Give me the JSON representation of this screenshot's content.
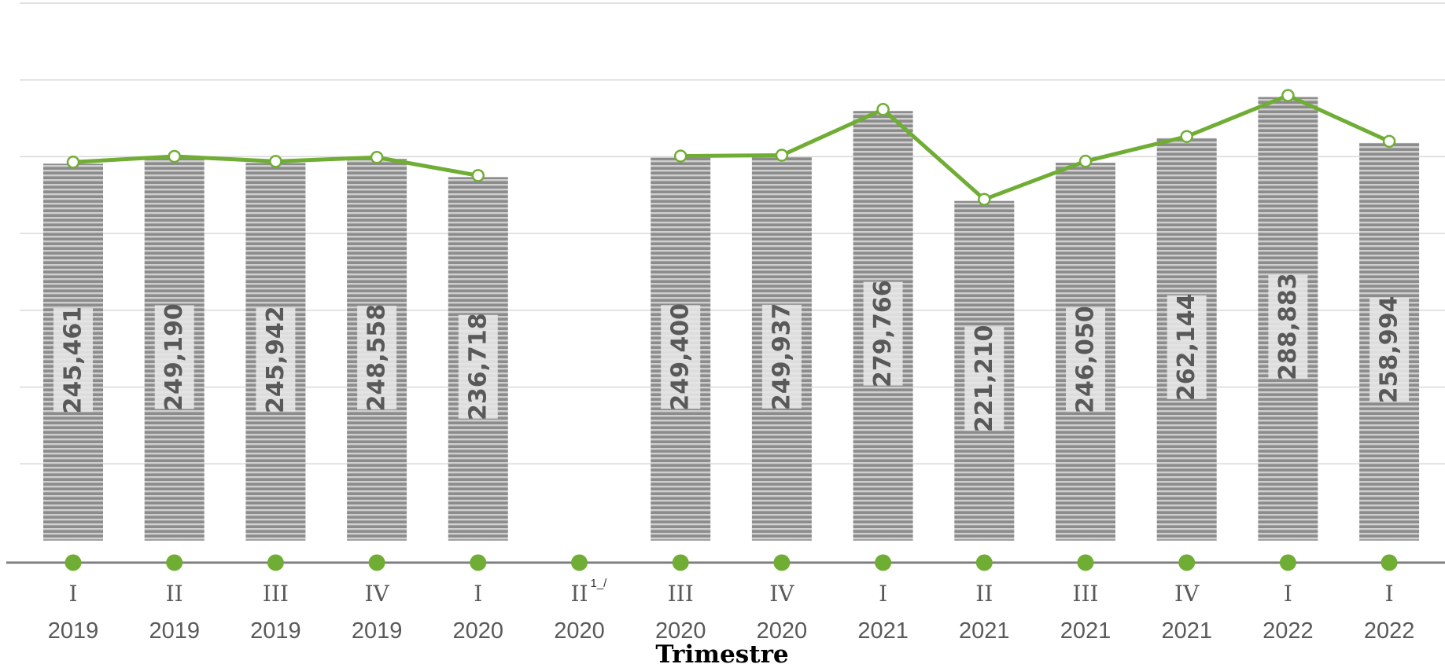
{
  "chart_data": {
    "type": "bar",
    "xlabel": "Trimestre",
    "ylabel": "",
    "ylim": [
      0,
      350000
    ],
    "grid": true,
    "categories": [
      {
        "quarter": "I",
        "year": "2019",
        "note": ""
      },
      {
        "quarter": "II",
        "year": "2019",
        "note": ""
      },
      {
        "quarter": "III",
        "year": "2019",
        "note": ""
      },
      {
        "quarter": "IV",
        "year": "2019",
        "note": ""
      },
      {
        "quarter": "I",
        "year": "2020",
        "note": ""
      },
      {
        "quarter": "II",
        "year": "2020",
        "note": "1_/"
      },
      {
        "quarter": "III",
        "year": "2020",
        "note": ""
      },
      {
        "quarter": "IV",
        "year": "2020",
        "note": ""
      },
      {
        "quarter": "I",
        "year": "2021",
        "note": ""
      },
      {
        "quarter": "II",
        "year": "2021",
        "note": ""
      },
      {
        "quarter": "III",
        "year": "2021",
        "note": ""
      },
      {
        "quarter": "IV",
        "year": "2021",
        "note": ""
      },
      {
        "quarter": "I",
        "year": "2022",
        "note": ""
      },
      {
        "quarter": "I",
        "year": "2022",
        "note": ""
      }
    ],
    "values": [
      245461,
      249190,
      245942,
      248558,
      236718,
      null,
      249400,
      249937,
      279766,
      221210,
      246050,
      262144,
      288883,
      258994
    ],
    "value_labels": [
      "245,461",
      "249,190",
      "245,942",
      "248,558",
      "236,718",
      "",
      "249,400",
      "249,937",
      "279,766",
      "221,210",
      "246,050",
      "262,144",
      "288,883",
      "258,994"
    ],
    "colors": {
      "bar": "#8c8c8c",
      "bar_stripe": "#d0d0d0",
      "line": "#70ad35",
      "marker_fill": "#ffffff"
    }
  }
}
